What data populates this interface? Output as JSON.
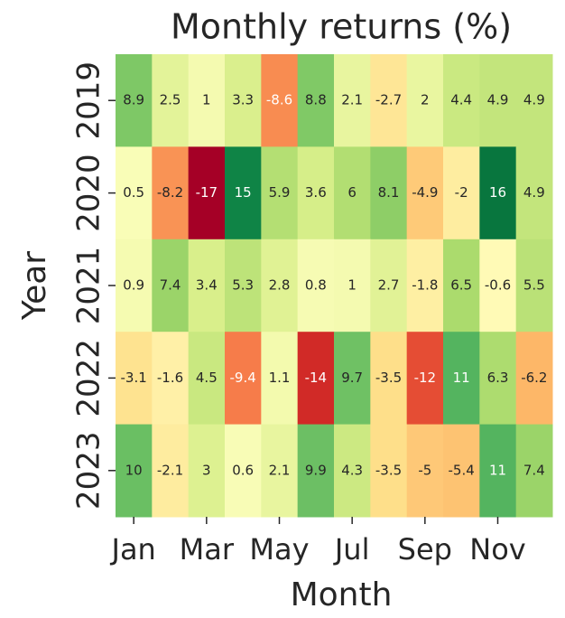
{
  "chart_data": {
    "type": "heatmap",
    "title": "Monthly returns (%)",
    "x_label": "Month",
    "y_label": "Year",
    "categories": [
      "Jan",
      null,
      "Mar",
      null,
      "May",
      null,
      "Jul",
      null,
      "Sep",
      null,
      "Nov",
      null
    ],
    "rows": [
      "2019",
      "2020",
      "2021",
      "2022",
      "2023"
    ],
    "values": [
      [
        8.9,
        2.5,
        1,
        3.3,
        -8.6,
        8.8,
        2.1,
        -2.7,
        2,
        4.4,
        4.9,
        4.9
      ],
      [
        0.5,
        -8.2,
        -17,
        15,
        5.9,
        3.6,
        6,
        8.1,
        -4.9,
        -2,
        16,
        4.9
      ],
      [
        0.9,
        7.4,
        3.4,
        5.3,
        2.8,
        0.8,
        1,
        2.7,
        -1.8,
        6.5,
        -0.6,
        5.5
      ],
      [
        -3.1,
        -1.6,
        4.5,
        -9.4,
        1.1,
        -14,
        9.7,
        -3.5,
        -12,
        11,
        6.3,
        -6.2
      ],
      [
        10,
        -2.1,
        3,
        0.6,
        2.1,
        9.9,
        4.3,
        -3.5,
        -5,
        -5.4,
        11,
        7.4
      ]
    ],
    "colormap": "RdYlGn"
  }
}
